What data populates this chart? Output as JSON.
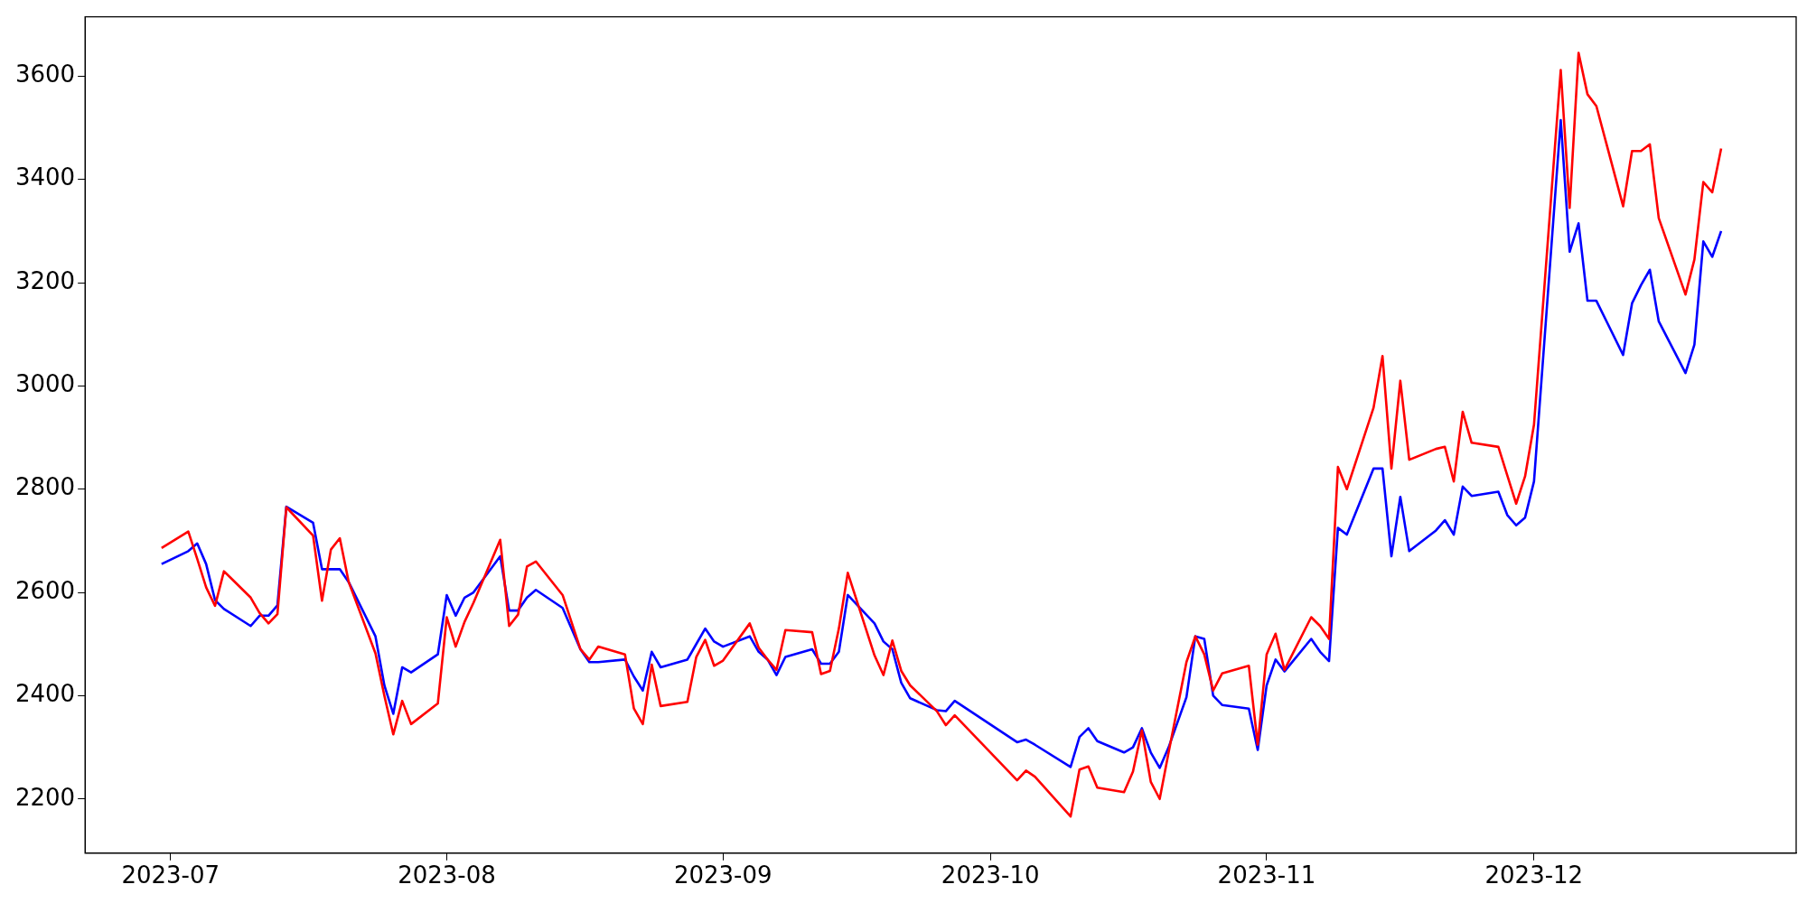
{
  "chart_data": {
    "type": "line",
    "x": [
      "2023-06-30",
      "2023-07-03",
      "2023-07-04",
      "2023-07-05",
      "2023-07-06",
      "2023-07-07",
      "2023-07-10",
      "2023-07-11",
      "2023-07-12",
      "2023-07-13",
      "2023-07-14",
      "2023-07-17",
      "2023-07-18",
      "2023-07-19",
      "2023-07-20",
      "2023-07-21",
      "2023-07-24",
      "2023-07-25",
      "2023-07-26",
      "2023-07-27",
      "2023-07-28",
      "2023-07-31",
      "2023-08-01",
      "2023-08-02",
      "2023-08-03",
      "2023-08-04",
      "2023-08-07",
      "2023-08-08",
      "2023-08-09",
      "2023-08-10",
      "2023-08-11",
      "2023-08-14",
      "2023-08-16",
      "2023-08-17",
      "2023-08-18",
      "2023-08-21",
      "2023-08-22",
      "2023-08-23",
      "2023-08-24",
      "2023-08-25",
      "2023-08-28",
      "2023-08-29",
      "2023-08-30",
      "2023-08-31",
      "2023-09-01",
      "2023-09-04",
      "2023-09-05",
      "2023-09-06",
      "2023-09-07",
      "2023-09-08",
      "2023-09-11",
      "2023-09-12",
      "2023-09-13",
      "2023-09-14",
      "2023-09-15",
      "2023-09-18",
      "2023-09-19",
      "2023-09-20",
      "2023-09-21",
      "2023-09-22",
      "2023-09-25",
      "2023-09-26",
      "2023-09-27",
      "2023-10-04",
      "2023-10-05",
      "2023-10-06",
      "2023-10-10",
      "2023-10-11",
      "2023-10-12",
      "2023-10-13",
      "2023-10-16",
      "2023-10-17",
      "2023-10-18",
      "2023-10-19",
      "2023-10-20",
      "2023-10-21",
      "2023-10-23",
      "2023-10-24",
      "2023-10-25",
      "2023-10-26",
      "2023-10-27",
      "2023-10-30",
      "2023-10-31",
      "2023-11-01",
      "2023-11-02",
      "2023-11-03",
      "2023-11-06",
      "2023-11-07",
      "2023-11-08",
      "2023-11-09",
      "2023-11-10",
      "2023-11-13",
      "2023-11-14",
      "2023-11-15",
      "2023-11-16",
      "2023-11-17",
      "2023-11-20",
      "2023-11-21",
      "2023-11-22",
      "2023-11-23",
      "2023-11-24",
      "2023-11-27",
      "2023-11-28",
      "2023-11-29",
      "2023-11-30",
      "2023-12-01",
      "2023-12-04",
      "2023-12-05",
      "2023-12-06",
      "2023-12-07",
      "2023-12-08",
      "2023-12-11",
      "2023-12-12",
      "2023-12-13",
      "2023-12-14",
      "2023-12-15",
      "2023-12-18",
      "2023-12-19",
      "2023-12-20",
      "2023-12-21",
      "2023-12-22"
    ],
    "series": [
      {
        "color": "#ff0000",
        "values": [
          2686,
          2718,
          2665,
          2610,
          2574,
          2641,
          2590,
          2560,
          2540,
          2558,
          2765,
          2710,
          2584,
          2683,
          2705,
          2620,
          2482,
          2400,
          2325,
          2390,
          2345,
          2385,
          2552,
          2495,
          2543,
          2580,
          2702,
          2535,
          2557,
          2650,
          2660,
          2595,
          2490,
          2470,
          2495,
          2480,
          2375,
          2345,
          2460,
          2380,
          2388,
          2475,
          2508,
          2458,
          2468,
          2540,
          2493,
          2470,
          2450,
          2527,
          2523,
          2442,
          2448,
          2530,
          2638,
          2478,
          2440,
          2507,
          2448,
          2420,
          2370,
          2343,
          2362,
          2236,
          2255,
          2243,
          2166,
          2257,
          2263,
          2222,
          2213,
          2253,
          2333,
          2233,
          2200,
          2290,
          2465,
          2515,
          2480,
          2410,
          2443,
          2458,
          2305,
          2480,
          2520,
          2450,
          2552,
          2535,
          2510,
          2843,
          2800,
          2958,
          3058,
          2840,
          3010,
          2857,
          2878,
          2882,
          2815,
          2950,
          2890,
          2882,
          2827,
          2772,
          2825,
          2925,
          3612,
          3345,
          3645,
          3565,
          3542,
          3348,
          3455,
          3455,
          3468,
          3325,
          3177,
          3245,
          3395,
          3375,
          3460
        ]
      },
      {
        "color": "#0000ff",
        "values": [
          2655,
          2680,
          2695,
          2655,
          2585,
          2568,
          2535,
          2555,
          2555,
          2575,
          2766,
          2735,
          2645,
          2645,
          2645,
          2620,
          2515,
          2420,
          2365,
          2455,
          2445,
          2480,
          2595,
          2555,
          2590,
          2600,
          2670,
          2565,
          2565,
          2590,
          2605,
          2570,
          2490,
          2465,
          2465,
          2470,
          2437,
          2410,
          2485,
          2455,
          2470,
          2500,
          2530,
          2505,
          2495,
          2515,
          2485,
          2470,
          2440,
          2475,
          2490,
          2462,
          2462,
          2485,
          2595,
          2540,
          2505,
          2490,
          2425,
          2395,
          2372,
          2370,
          2390,
          2310,
          2315,
          2305,
          2262,
          2320,
          2337,
          2312,
          2290,
          2300,
          2337,
          2290,
          2260,
          2300,
          2397,
          2515,
          2510,
          2400,
          2382,
          2375,
          2295,
          2420,
          2470,
          2447,
          2510,
          2485,
          2467,
          2725,
          2712,
          2840,
          2840,
          2670,
          2785,
          2680,
          2720,
          2740,
          2712,
          2805,
          2787,
          2795,
          2750,
          2730,
          2745,
          2815,
          3515,
          3260,
          3315,
          3165,
          3165,
          3060,
          3160,
          3195,
          3225,
          3125,
          3025,
          3080,
          3280,
          3250,
          3300
        ]
      }
    ],
    "xlim": [
      "2023-06-21T10:00",
      "2023-12-30T10:00"
    ],
    "xticks": [
      {
        "value": "2023-07-01",
        "label": "2023-07"
      },
      {
        "value": "2023-08-01",
        "label": "2023-08"
      },
      {
        "value": "2023-09-01",
        "label": "2023-09"
      },
      {
        "value": "2023-10-01",
        "label": "2023-10"
      },
      {
        "value": "2023-11-01",
        "label": "2023-11"
      },
      {
        "value": "2023-12-01",
        "label": "2023-12"
      }
    ],
    "ylim": [
      2095,
      3715
    ],
    "yticks": [
      2200,
      2400,
      2600,
      2800,
      3000,
      3200,
      3400,
      3600
    ]
  }
}
